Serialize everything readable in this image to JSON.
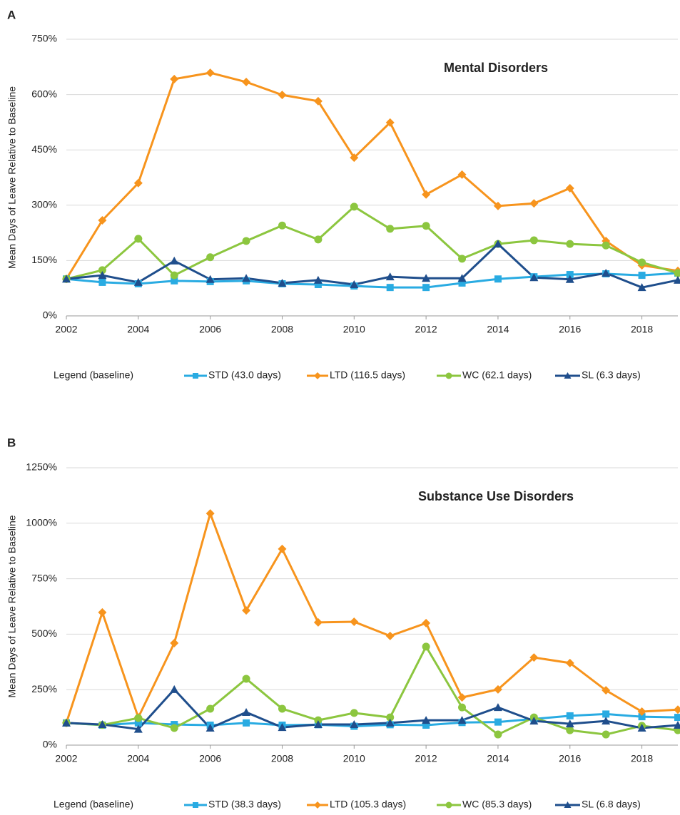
{
  "chart_data": [
    {
      "type": "line",
      "panel_label": "A",
      "title": "Mental Disorders",
      "y_label": "Mean Days of Leave Relative to Baseline",
      "legend_title": "Legend (baseline)",
      "grid": true,
      "legend": "bottom",
      "x": [
        2002,
        2003,
        2004,
        2005,
        2006,
        2007,
        2008,
        2009,
        2010,
        2011,
        2012,
        2013,
        2014,
        2015,
        2016,
        2017,
        2018,
        2019
      ],
      "xlim": [
        2002,
        2019
      ],
      "xticks": [
        2002,
        2004,
        2006,
        2008,
        2010,
        2012,
        2014,
        2016,
        2018
      ],
      "ylim": [
        0,
        750
      ],
      "yticks": [
        {
          "value": 0,
          "label": "0%"
        },
        {
          "value": 150,
          "label": "150%"
        },
        {
          "value": 300,
          "label": "300%"
        },
        {
          "value": 450,
          "label": "450%"
        },
        {
          "value": 600,
          "label": "600%"
        },
        {
          "value": 750,
          "label": "750%"
        }
      ],
      "series": [
        {
          "name": "STD (43.0 days)",
          "color": "#29abe2",
          "marker": "square",
          "values": [
            100,
            91,
            87,
            95,
            93,
            95,
            87,
            85,
            81,
            77,
            77,
            89,
            100,
            106,
            112,
            114,
            110,
            116
          ]
        },
        {
          "name": "LTD  (116.5 days)",
          "color": "#f7941d",
          "marker": "diamond",
          "values": [
            100,
            259,
            360,
            642,
            659,
            634,
            599,
            582,
            429,
            524,
            329,
            383,
            298,
            305,
            346,
            203,
            137,
            122
          ]
        },
        {
          "name": "WC (62.1 days)",
          "color": "#8cc63f",
          "marker": "circle",
          "values": [
            100,
            124,
            209,
            110,
            159,
            203,
            245,
            207,
            296,
            236,
            244,
            155,
            195,
            205,
            195,
            191,
            145,
            116
          ]
        },
        {
          "name": "SL (6.3 days)",
          "color": "#1f4e8c",
          "marker": "triangle",
          "values": [
            100,
            110,
            91,
            149,
            99,
            102,
            89,
            97,
            85,
            106,
            102,
            102,
            195,
            104,
            99,
            116,
            77,
            97
          ]
        }
      ]
    },
    {
      "type": "line",
      "panel_label": "B",
      "title": "Substance Use Disorders",
      "y_label": "Mean Days of Leave Relative to Baseline",
      "legend_title": "Legend (baseline)",
      "grid": true,
      "legend": "bottom",
      "x": [
        2002,
        2003,
        2004,
        2005,
        2006,
        2007,
        2008,
        2009,
        2010,
        2011,
        2012,
        2013,
        2014,
        2015,
        2016,
        2017,
        2018,
        2019
      ],
      "xlim": [
        2002,
        2019
      ],
      "xticks": [
        2002,
        2004,
        2006,
        2008,
        2010,
        2012,
        2014,
        2016,
        2018
      ],
      "ylim": [
        0,
        1250
      ],
      "yticks": [
        {
          "value": 0,
          "label": "0%"
        },
        {
          "value": 250,
          "label": "250%"
        },
        {
          "value": 500,
          "label": "500%"
        },
        {
          "value": 750,
          "label": "750%"
        },
        {
          "value": 1000,
          "label": "1000%"
        },
        {
          "value": 1250,
          "label": "1250%"
        }
      ],
      "series": [
        {
          "name": "STD (38.3 days)",
          "color": "#29abe2",
          "marker": "square",
          "values": [
            100,
            90,
            100,
            93,
            90,
            100,
            90,
            92,
            85,
            92,
            90,
            102,
            104,
            118,
            132,
            140,
            128,
            125
          ]
        },
        {
          "name": "LTD  (105.3 days)",
          "color": "#f7941d",
          "marker": "diamond",
          "values": [
            100,
            598,
            125,
            460,
            1044,
            607,
            884,
            553,
            556,
            492,
            550,
            215,
            251,
            395,
            370,
            247,
            151,
            160
          ]
        },
        {
          "name": "WC (85.3 days)",
          "color": "#8cc63f",
          "marker": "circle",
          "values": [
            100,
            91,
            122,
            77,
            164,
            299,
            164,
            112,
            145,
            125,
            444,
            170,
            48,
            125,
            67,
            48,
            87,
            67
          ]
        },
        {
          "name": "SL (6.8 days)",
          "color": "#1f4e8c",
          "marker": "triangle",
          "values": [
            100,
            93,
            72,
            251,
            77,
            148,
            80,
            93,
            93,
            100,
            112,
            112,
            170,
            109,
            96,
            109,
            77,
            90
          ]
        }
      ]
    }
  ]
}
